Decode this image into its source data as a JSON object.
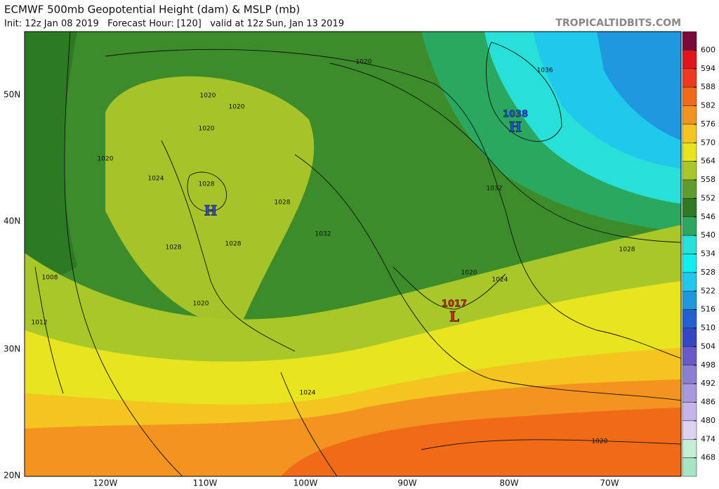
{
  "header": {
    "title": "ECMWF 500mb Geopotential Height (dam) & MSLP (mb)",
    "subtitle": "Init: 12z Jan 08 2019   Forecast Hour: [120]   valid at 12z Sun, Jan 13 2019",
    "source": "TROPICALTIDBITS.COM"
  },
  "map": {
    "latitude_labels": [
      "50N",
      "40N",
      "30N",
      "20N"
    ],
    "longitude_labels": [
      "120W",
      "110W",
      "100W",
      "90W",
      "80W",
      "70W"
    ],
    "pressure_labels": [
      "1020",
      "1036",
      "1020",
      "1020",
      "1020",
      "1020",
      "1024",
      "1028",
      "1028",
      "1032",
      "1032",
      "1028",
      "1028",
      "1028",
      "1008",
      "1020",
      "1024",
      "1020",
      "1012",
      "1024",
      "1020"
    ],
    "centers": [
      {
        "value": "1038",
        "symbol": "H"
      },
      {
        "symbol": "H"
      },
      {
        "value": "1017",
        "symbol": "L"
      }
    ]
  },
  "colorbar": {
    "labels": [
      600,
      594,
      588,
      582,
      576,
      570,
      564,
      558,
      552,
      546,
      540,
      534,
      528,
      522,
      516,
      510,
      504,
      498,
      492,
      486,
      480,
      474,
      468
    ]
  }
}
